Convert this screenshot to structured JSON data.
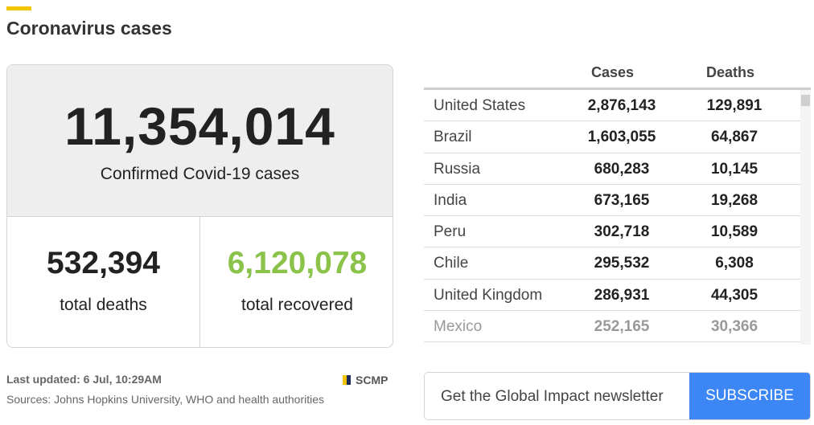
{
  "header": {
    "title": "Coronavirus cases",
    "accent_color": "#f5c400"
  },
  "summary": {
    "confirmed_value": "11,354,014",
    "confirmed_label": "Confirmed Covid-19 cases",
    "deaths_value": "532,394",
    "deaths_label": "total deaths",
    "recovered_value": "6,120,078",
    "recovered_label": "total recovered",
    "recovered_color": "#8bc34a"
  },
  "footer": {
    "last_updated": "Last updated: 6 Jul, 10:29AM",
    "sources": "Sources: Johns Hopkins University, WHO and health authorities",
    "brand": "SCMP"
  },
  "table": {
    "headers": {
      "cases": "Cases",
      "deaths": "Deaths"
    },
    "rows": [
      {
        "country": "United States",
        "cases": "2,876,143",
        "deaths": "129,891"
      },
      {
        "country": "Brazil",
        "cases": "1,603,055",
        "deaths": "64,867"
      },
      {
        "country": "Russia",
        "cases": "680,283",
        "deaths": "10,145"
      },
      {
        "country": "India",
        "cases": "673,165",
        "deaths": "19,268"
      },
      {
        "country": "Peru",
        "cases": "302,718",
        "deaths": "10,589"
      },
      {
        "country": "Chile",
        "cases": "295,532",
        "deaths": "6,308"
      },
      {
        "country": "United Kingdom",
        "cases": "286,931",
        "deaths": "44,305"
      },
      {
        "country": "Mexico",
        "cases": "252,165",
        "deaths": "30,366"
      }
    ]
  },
  "newsletter": {
    "text": "Get the Global Impact newsletter",
    "button_label": "SUBSCRIBE",
    "button_color": "#3d86f6"
  }
}
